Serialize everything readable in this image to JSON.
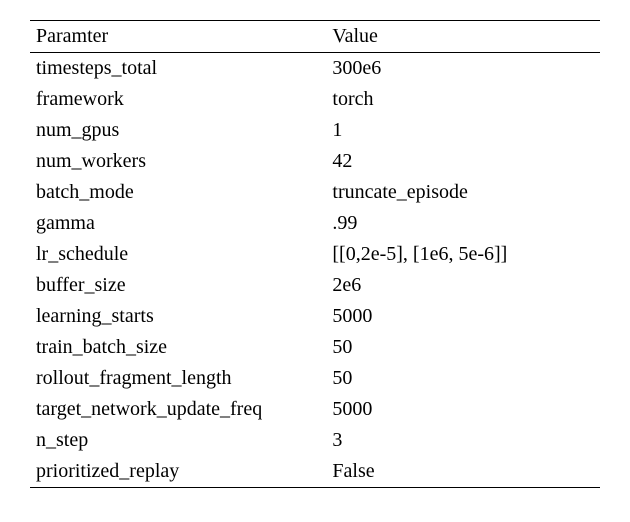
{
  "table": {
    "type": "table",
    "columns": [
      "Paramter",
      "Value"
    ],
    "rows": [
      [
        "timesteps_total",
        "300e6"
      ],
      [
        "framework",
        "torch"
      ],
      [
        "num_gpus",
        "1"
      ],
      [
        "num_workers",
        "42"
      ],
      [
        "batch_mode",
        "truncate_episode"
      ],
      [
        "gamma",
        ".99"
      ],
      [
        "lr_schedule",
        "[[0,2e-5], [1e6, 5e-6]]"
      ],
      [
        "buffer_size",
        "2e6"
      ],
      [
        "learning_starts",
        "5000"
      ],
      [
        "train_batch_size",
        "50"
      ],
      [
        "rollout_fragment_length",
        "50"
      ],
      [
        "target_network_update_freq",
        "5000"
      ],
      [
        "n_step",
        "3"
      ],
      [
        "prioritized_replay",
        "False"
      ]
    ],
    "font_family": "Times New Roman",
    "font_size_pt": 15,
    "text_color": "#000000",
    "background_color": "#ffffff",
    "border_color": "#000000",
    "top_rule_width": 1.5,
    "mid_rule_width": 1.0,
    "bottom_rule_width": 1.5,
    "column_widths": [
      "52%",
      "48%"
    ],
    "cell_padding": "4px 6px",
    "header_font_weight": "normal"
  }
}
